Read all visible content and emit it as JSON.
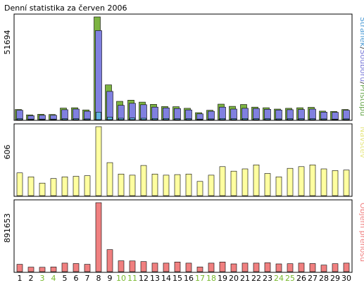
{
  "chart_data": {
    "type": "bar",
    "title": "Denní statistika za červen 2006",
    "categories": [
      "1",
      "2",
      "3",
      "4",
      "5",
      "6",
      "7",
      "8",
      "9",
      "10",
      "11",
      "12",
      "13",
      "14",
      "15",
      "16",
      "17",
      "18",
      "19",
      "20",
      "21",
      "22",
      "23",
      "24",
      "25",
      "26",
      "27",
      "28",
      "29",
      "30"
    ],
    "weekend_days": [
      "3",
      "4",
      "10",
      "11",
      "17",
      "18",
      "24",
      "25"
    ],
    "panels": [
      {
        "id": "hits",
        "max_label": "51694",
        "ymax": 51694,
        "legend": [
          {
            "text": "Stránek",
            "color": "#4a9ad4"
          },
          {
            "text": "/",
            "color": "#3a3a3a"
          },
          {
            "text": "Souborů",
            "color": "#7a7ad8"
          },
          {
            "text": "/",
            "color": "#3a3a3a"
          },
          {
            "text": "Přístupů",
            "color": "#6aa84f"
          }
        ],
        "series": [
          {
            "name": "Přístupů",
            "color": "#7cb342",
            "values": [
              5100,
              2400,
              2700,
              2600,
              5800,
              6000,
              4900,
              51694,
              17500,
              9200,
              9800,
              8800,
              7700,
              6600,
              6500,
              5700,
              3500,
              4700,
              7800,
              6700,
              7600,
              6300,
              6000,
              5300,
              5700,
              6000,
              6200,
              4300,
              4100,
              5100
            ]
          },
          {
            "name": "Souborů",
            "color": "#8080e0",
            "values": [
              4700,
              2000,
              2200,
              2200,
              5000,
              5300,
              4200,
              44800,
              14200,
              7200,
              8200,
              7500,
              6300,
              5900,
              5600,
              4900,
              2900,
              4200,
              6300,
              5300,
              5700,
              5600,
              5200,
              4800,
              5000,
              5100,
              5300,
              3800,
              3700,
              4700
            ]
          },
          {
            "name": "Stránek",
            "color": "#60b4e0",
            "values": [
              500,
              300,
              300,
              300,
              500,
              500,
              400,
              3800,
              1300,
              700,
              800,
              700,
              600,
              600,
              500,
              500,
              300,
              400,
              600,
              500,
              600,
              500,
              500,
              400,
              500,
              500,
              500,
              400,
              300,
              400
            ]
          }
        ]
      },
      {
        "id": "visits",
        "max_label": "606",
        "ymax": 606,
        "legend": [
          {
            "text": "Návštěv",
            "color": "#e6e680"
          }
        ],
        "series": [
          {
            "name": "Návštěv",
            "color": "#ffffa0",
            "values": [
              200,
              165,
              110,
              150,
              165,
              170,
              175,
              606,
              290,
              190,
              180,
              265,
              190,
              180,
              185,
              190,
              125,
              180,
              255,
              215,
              235,
              270,
              195,
              165,
              240,
              255,
              270,
              235,
              220,
              225
            ]
          }
        ]
      },
      {
        "id": "traffic",
        "max_label": "891653",
        "ymax": 891653,
        "legend": [
          {
            "text": "Objem přenosu",
            "color": "#f08080"
          }
        ],
        "series": [
          {
            "name": "Objem přenosu",
            "color": "#f08080",
            "values": [
              95000,
              58000,
              56000,
              60000,
              110000,
              105000,
              95000,
              891653,
              285000,
              140000,
              138000,
              130000,
              110000,
              110000,
              125000,
              110000,
              60000,
              110000,
              125000,
              100000,
              110000,
              110000,
              115000,
              100000,
              103000,
              110000,
              105000,
              85000,
              103000,
              110000
            ]
          }
        ]
      }
    ],
    "grid": false,
    "legend_placement": "right-vertical"
  }
}
